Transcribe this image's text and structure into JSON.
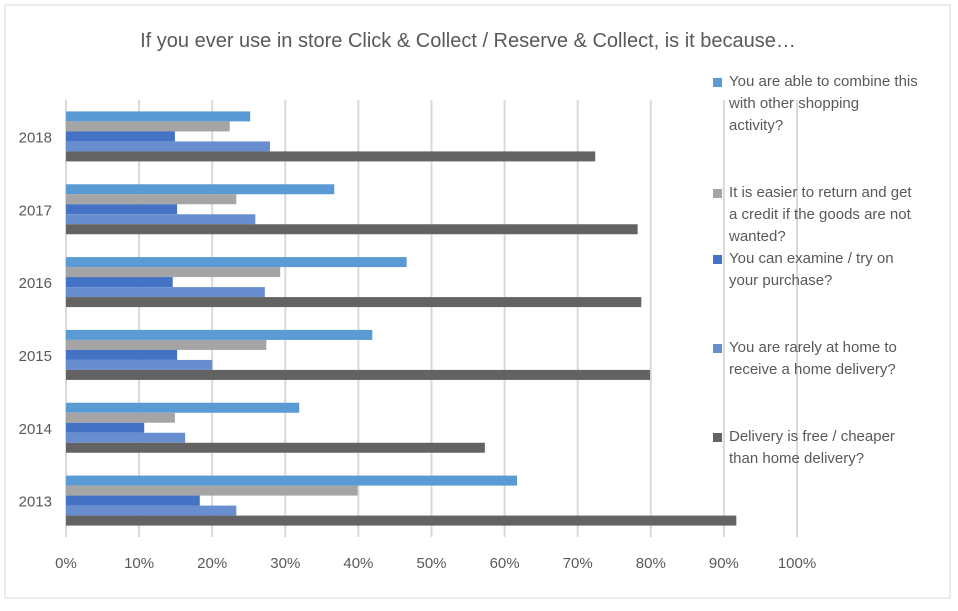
{
  "chart_data": {
    "type": "bar",
    "orientation": "horizontal",
    "title": "If you ever use in store Click & Collect / Reserve & Collect, is it because…",
    "categories": [
      "2018",
      "2017",
      "2016",
      "2015",
      "2014",
      "2013"
    ],
    "xlim": [
      0,
      100
    ],
    "x_ticks": [
      "0%",
      "10%",
      "20%",
      "30%",
      "40%",
      "50%",
      "60%",
      "70%",
      "80%",
      "90%",
      "100%"
    ],
    "grid": true,
    "legend_position": "right",
    "series": [
      {
        "name": "You are able to combine this with other shopping activity?",
        "color": "#5B9BD5",
        "values": [
          25.2,
          36.7,
          46.6,
          41.9,
          31.9,
          61.7
        ]
      },
      {
        "name": "It is easier to return and get a credit if the goods are not wanted?",
        "color": "#A5A5A5",
        "values": [
          22.4,
          23.3,
          29.3,
          27.4,
          14.9,
          39.9
        ]
      },
      {
        "name": "You can examine / try on your purchase?",
        "color": "#4472C4",
        "values": [
          14.9,
          15.2,
          14.6,
          15.2,
          10.7,
          18.3
        ]
      },
      {
        "name": "You are rarely at home to receive a home delivery?",
        "color": "#698ED0",
        "values": [
          27.9,
          25.9,
          27.2,
          20.0,
          16.3,
          23.3
        ]
      },
      {
        "name": "Delivery is free / cheaper than home delivery?",
        "color": "#636363",
        "values": [
          72.4,
          78.2,
          78.7,
          79.9,
          57.3,
          91.7
        ]
      }
    ],
    "legend_lines": [
      [
        "You are able to combine this",
        "with other shopping",
        "activity?"
      ],
      [
        "It is easier to return and get",
        "a credit if the goods are not",
        "wanted?"
      ],
      [
        "You can examine / try on",
        "your purchase?"
      ],
      [
        "You are rarely at home to",
        "receive a home delivery?"
      ],
      [
        "Delivery is free / cheaper",
        "than home delivery?"
      ]
    ]
  }
}
